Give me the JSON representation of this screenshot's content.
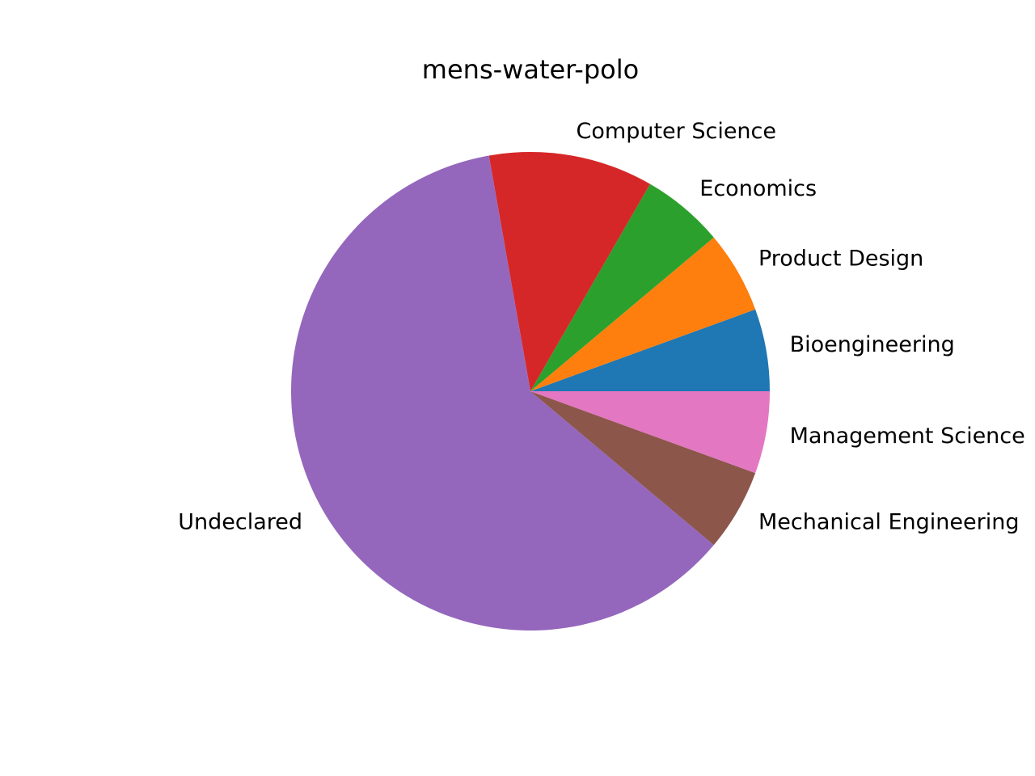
{
  "chart_data": {
    "type": "pie",
    "title": "mens-water-polo",
    "start_angle_deg": 0,
    "direction": "counterclockwise",
    "slices": [
      {
        "label": "Bioengineering",
        "value": 1,
        "color": "#1f77b4"
      },
      {
        "label": "Product Design",
        "value": 1,
        "color": "#ff7f0e"
      },
      {
        "label": "Economics",
        "value": 1,
        "color": "#2ca02c"
      },
      {
        "label": "Computer Science",
        "value": 2,
        "color": "#d62728"
      },
      {
        "label": "Undeclared",
        "value": 11,
        "color": "#9467bd"
      },
      {
        "label": "Mechanical Engineering",
        "value": 1,
        "color": "#8c564b"
      },
      {
        "label": "Management Science",
        "value": 1,
        "color": "#e377c2"
      }
    ]
  }
}
